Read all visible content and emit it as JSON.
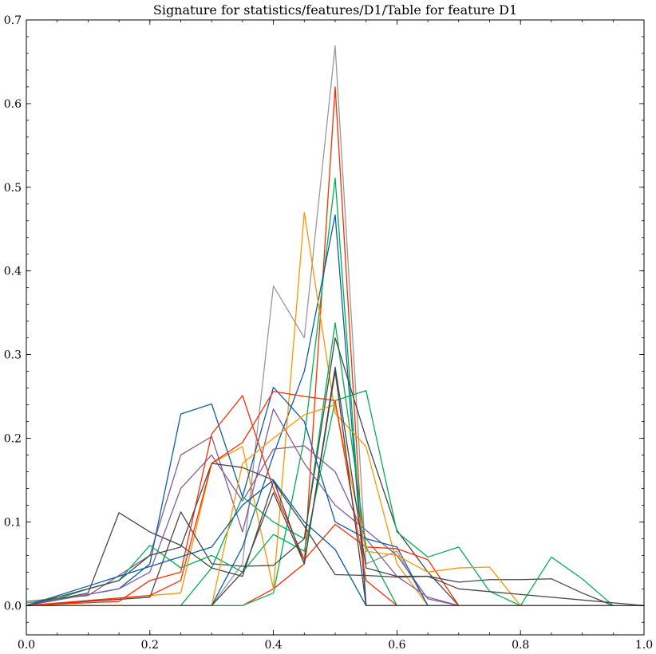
{
  "chart_data": {
    "type": "line",
    "title": "Signature for statistics/features/D1/Table for feature D1",
    "xlabel": "",
    "ylabel": "",
    "xlim": [
      0.0,
      1.0
    ],
    "ylim": [
      -0.035,
      0.7
    ],
    "xticks": [
      "0.0",
      "0.2",
      "0.4",
      "0.6",
      "0.8",
      "1.0"
    ],
    "yticks": [
      "0.0",
      "0.1",
      "0.2",
      "0.3",
      "0.4",
      "0.5",
      "0.6",
      "0.7"
    ],
    "grid": false,
    "legend": "none",
    "series": [
      {
        "color": "#999999",
        "x": [
          0,
          0.3,
          0.35,
          0.4,
          0.45,
          0.5,
          0.55,
          0.6,
          0.65,
          1.0
        ],
        "y": [
          0,
          0,
          0.05,
          0.382,
          0.32,
          0.669,
          0.05,
          0.065,
          0,
          0
        ]
      },
      {
        "color": "#ff2c00",
        "x": [
          0,
          0.35,
          0.4,
          0.45,
          0.5,
          0.55,
          1.0
        ],
        "y": [
          0,
          0,
          0.02,
          0.05,
          0.62,
          0,
          0
        ]
      },
      {
        "color": "#00b050",
        "x": [
          0,
          0.35,
          0.4,
          0.45,
          0.5,
          0.55,
          1.0
        ],
        "y": [
          0,
          0,
          0.015,
          0.2,
          0.511,
          0,
          0
        ]
      },
      {
        "color": "#0c5da5",
        "x": [
          0,
          0.3,
          0.35,
          0.4,
          0.45,
          0.5,
          0.55,
          1.0
        ],
        "y": [
          0,
          0,
          0.07,
          0.18,
          0.28,
          0.467,
          0,
          0
        ]
      },
      {
        "color": "#ff9500",
        "x": [
          0,
          0.25,
          0.3,
          0.35,
          0.4,
          0.45,
          0.5,
          0.55,
          0.6,
          0.65,
          1.0
        ],
        "y": [
          0,
          0.015,
          0.17,
          0.19,
          0.02,
          0.47,
          0.23,
          0.19,
          0.05,
          0,
          0
        ]
      },
      {
        "color": "#00b050",
        "x": [
          0,
          0.25,
          0.3,
          0.35,
          0.4,
          0.45,
          0.5,
          0.55,
          0.6,
          1.0
        ],
        "y": [
          0,
          0,
          0.045,
          0.13,
          0.1,
          0.08,
          0.338,
          0.07,
          0,
          0
        ]
      },
      {
        "color": "#474747",
        "x": [
          0,
          0.2,
          0.25,
          0.3,
          0.35,
          0.4,
          0.45,
          0.5,
          0.55,
          0.6,
          0.65,
          0.7,
          1.0
        ],
        "y": [
          0,
          0.01,
          0.112,
          0.05,
          0.047,
          0.048,
          0.08,
          0.32,
          0.2,
          0.09,
          0.04,
          0,
          0
        ]
      },
      {
        "color": "#845b97",
        "x": [
          0,
          0.1,
          0.2,
          0.25,
          0.3,
          0.35,
          0.4,
          0.45,
          0.5,
          0.55,
          0.6,
          0.65,
          0.7,
          1.0
        ],
        "y": [
          0.005,
          0.012,
          0.06,
          0.18,
          0.202,
          0.088,
          0.235,
          0.17,
          0.12,
          0.09,
          0.06,
          0.008,
          0,
          0
        ]
      },
      {
        "color": "#0c5da5",
        "x": [
          0,
          0.15,
          0.2,
          0.25,
          0.3,
          0.35,
          0.4,
          0.45,
          0.5,
          0.55,
          0.6,
          0.65,
          1.0
        ],
        "y": [
          0,
          0.02,
          0.05,
          0.229,
          0.241,
          0.13,
          0.261,
          0.22,
          0.1,
          0.08,
          0.07,
          0,
          0
        ]
      },
      {
        "color": "#ff2c00",
        "x": [
          0,
          0.15,
          0.2,
          0.25,
          0.3,
          0.35,
          0.4,
          0.45,
          0.5,
          0.55,
          0.6,
          0.65,
          0.7,
          1.0
        ],
        "y": [
          0,
          0.005,
          0.03,
          0.04,
          0.205,
          0.251,
          0.14,
          0.055,
          0.097,
          0.07,
          0.068,
          0.055,
          0,
          0
        ]
      },
      {
        "color": "#474747",
        "x": [
          0,
          0.1,
          0.15,
          0.2,
          0.25,
          0.3,
          0.35,
          0.4,
          0.45,
          0.5,
          0.55,
          0.6,
          0.65,
          0.7,
          0.75,
          0.8,
          0.85,
          0.9,
          0.95,
          1.0
        ],
        "y": [
          0,
          0.015,
          0.111,
          0.088,
          0.072,
          0.045,
          0.035,
          0.148,
          0.095,
          0.037,
          0.036,
          0.034,
          0.035,
          0.028,
          0.031,
          0.031,
          0.032,
          0.015,
          0,
          0
        ]
      },
      {
        "color": "#00b050",
        "x": [
          0,
          0.05,
          0.1,
          0.15,
          0.2,
          0.25,
          0.3,
          0.35,
          0.4,
          0.45,
          0.5,
          0.55,
          0.6,
          0.65,
          0.7,
          0.75,
          0.8,
          0.85,
          0.9,
          0.95,
          1.0
        ],
        "y": [
          0.003,
          0.008,
          0.02,
          0.03,
          0.072,
          0.045,
          0.06,
          0.04,
          0.085,
          0.065,
          0.245,
          0.257,
          0.088,
          0.058,
          0.07,
          0.017,
          0,
          0.058,
          0.032,
          0,
          0
        ]
      },
      {
        "color": "#ff9500",
        "x": [
          0,
          0.2,
          0.25,
          0.3,
          0.35,
          0.4,
          0.45,
          0.5,
          0.55,
          0.6,
          0.65,
          0.7,
          0.75,
          0.8,
          1.0
        ],
        "y": [
          0,
          0,
          0,
          0,
          0.17,
          0.2,
          0.228,
          0.24,
          0.065,
          0.06,
          0.04,
          0.045,
          0.046,
          0,
          0
        ]
      },
      {
        "color": "#845b97",
        "x": [
          0,
          0.15,
          0.2,
          0.25,
          0.3,
          0.35,
          0.4,
          0.45,
          0.5,
          0.55,
          0.6,
          0.65,
          0.7,
          1.0
        ],
        "y": [
          0,
          0.02,
          0.04,
          0.14,
          0.18,
          0.125,
          0.187,
          0.191,
          0.16,
          0.08,
          0.035,
          0.01,
          0,
          0
        ]
      },
      {
        "color": "#474747",
        "x": [
          0,
          0.15,
          0.2,
          0.25,
          0.3,
          0.35,
          0.4,
          0.45,
          0.5,
          0.55,
          0.6,
          0.65,
          0.7,
          1.0
        ],
        "y": [
          0,
          0.03,
          0.06,
          0.07,
          0.17,
          0.165,
          0.15,
          0.05,
          0.285,
          0.045,
          0.035,
          0.035,
          0.02,
          0
        ]
      },
      {
        "color": "#ff2c00",
        "x": [
          0,
          0.2,
          0.25,
          0.3,
          0.35,
          0.4,
          0.45,
          0.5,
          0.55,
          0.6,
          1.0
        ],
        "y": [
          0,
          0.012,
          0.03,
          0.17,
          0.195,
          0.256,
          0.25,
          0.245,
          0.03,
          0,
          0
        ]
      },
      {
        "color": "#0c5da5",
        "x": [
          0,
          0.3,
          0.35,
          0.4,
          0.45,
          0.5,
          0.55,
          1.0
        ],
        "y": [
          0,
          0.07,
          0.12,
          0.15,
          0.1,
          0.067,
          0,
          0
        ]
      },
      {
        "color": "#474747",
        "x": [
          0,
          0.3,
          0.35,
          0.4,
          0.45,
          0.5,
          0.55,
          1.0
        ],
        "y": [
          0,
          0,
          0.04,
          0.135,
          0.05,
          0.28,
          0,
          0
        ]
      }
    ]
  }
}
